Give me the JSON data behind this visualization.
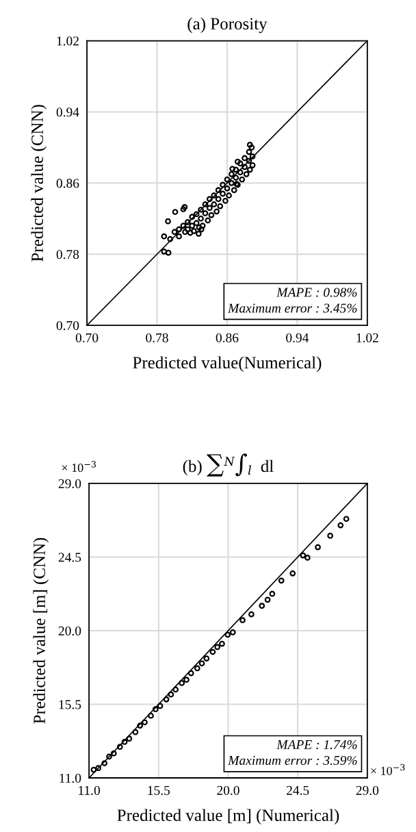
{
  "chart_data": [
    {
      "type": "scatter",
      "title": "(a) Porosity",
      "xlabel": "Predicted value(Numerical)",
      "ylabel": "Predicted value (CNN)",
      "xlim": [
        0.7,
        1.02
      ],
      "ylim": [
        0.7,
        1.02
      ],
      "xticks": [
        {
          "value": 0.7,
          "label": "0.70"
        },
        0.78,
        0.86,
        0.94,
        1.02
      ],
      "yticks": [
        {
          "value": 0.7,
          "label": "0.70"
        },
        0.78,
        0.86,
        0.94,
        1.02
      ],
      "grid": true,
      "legend": false,
      "annotations": [
        "MAPE : 0.98%",
        "Maximum error : 3.45%"
      ],
      "series": [
        {
          "type": "line",
          "color": "#000000",
          "x": [
            0.7,
            1.02
          ],
          "values": [
            0.7,
            1.02
          ]
        },
        {
          "color": "#000000",
          "marker": "circle",
          "x": [
            0.788,
            0.793,
            0.788,
            0.7925,
            0.8007,
            0.81,
            0.8115,
            0.8275,
            0.8306,
            0.8708,
            0.795,
            0.8,
            0.805,
            0.805,
            0.81,
            0.812,
            0.815,
            0.815,
            0.818,
            0.82,
            0.82,
            0.822,
            0.825,
            0.825,
            0.828,
            0.83,
            0.83,
            0.832,
            0.835,
            0.835,
            0.838,
            0.84,
            0.84,
            0.842,
            0.845,
            0.845,
            0.848,
            0.85,
            0.85,
            0.852,
            0.855,
            0.855,
            0.858,
            0.86,
            0.86,
            0.862,
            0.865,
            0.865,
            0.868,
            0.87,
            0.87,
            0.872,
            0.875,
            0.875,
            0.877,
            0.88,
            0.88,
            0.882,
            0.885,
            0.885,
            0.886,
            0.888,
            0.889,
            0.889,
            0.886,
            0.872,
            0.866
          ],
          "values": [
            0.783,
            0.7816,
            0.8,
            0.817,
            0.8275,
            0.8306,
            0.833,
            0.803,
            0.808,
            0.859,
            0.797,
            0.805,
            0.808,
            0.8,
            0.812,
            0.805,
            0.816,
            0.808,
            0.804,
            0.822,
            0.812,
            0.806,
            0.825,
            0.815,
            0.81,
            0.83,
            0.82,
            0.812,
            0.836,
            0.826,
            0.818,
            0.842,
            0.832,
            0.824,
            0.846,
            0.836,
            0.828,
            0.852,
            0.842,
            0.834,
            0.858,
            0.848,
            0.84,
            0.864,
            0.854,
            0.846,
            0.87,
            0.86,
            0.852,
            0.875,
            0.866,
            0.858,
            0.882,
            0.872,
            0.864,
            0.888,
            0.878,
            0.87,
            0.895,
            0.885,
            0.875,
            0.9,
            0.89,
            0.88,
            0.903,
            0.884,
            0.876
          ]
        }
      ]
    },
    {
      "type": "scatter",
      "title": "(b) ∑$^{N}$∫$_{l}$  dl",
      "xlabel": "Predicted value [m] (Numerical)",
      "ylabel": "Predicted value [m] (CNN)",
      "xlim": [
        11.0,
        29.0
      ],
      "ylim": [
        11.0,
        29.0
      ],
      "xticks": [
        {
          "value": 11.0,
          "label": "11.0"
        },
        15.5,
        {
          "value": 20.0,
          "label": "20.0"
        },
        24.5,
        {
          "value": 29.0,
          "label": "29.0"
        }
      ],
      "yticks": [
        {
          "value": 11.0,
          "label": "11.0"
        },
        15.5,
        {
          "value": 20.0,
          "label": "20.0"
        },
        24.5,
        {
          "value": 29.0,
          "label": "29.0"
        }
      ],
      "grid": true,
      "legend": false,
      "annotations": [
        "MAPE : 1.74%",
        "Maximum error : 3.59%",
        "× 10$^{−3}$",
        "× 10$^{−3}$"
      ],
      "series": [
        {
          "type": "line",
          "color": "#000000",
          "x": [
            11.0,
            29.0
          ],
          "values": [
            11.0,
            29.0
          ]
        },
        {
          "color": "#000000",
          "marker": "circle",
          "x": [
            11.3,
            11.6,
            12.0,
            12.3,
            12.6,
            13.0,
            13.3,
            13.6,
            14.0,
            14.3,
            14.6,
            15.0,
            15.3,
            15.6,
            16.0,
            16.3,
            16.6,
            17.0,
            17.3,
            17.6,
            18.0,
            18.3,
            18.6,
            19.0,
            19.3,
            19.6,
            19.97,
            20.3,
            20.93,
            21.5,
            22.18,
            22.55,
            22.85,
            23.44,
            24.17,
            24.84,
            25.13,
            25.8,
            26.6,
            27.27,
            27.64
          ],
          "values": [
            11.5,
            11.6,
            11.9,
            12.3,
            12.5,
            12.9,
            13.2,
            13.4,
            13.8,
            14.2,
            14.4,
            14.8,
            15.2,
            15.4,
            15.8,
            16.1,
            16.4,
            16.8,
            17.0,
            17.4,
            17.7,
            18.0,
            18.3,
            18.7,
            19.0,
            19.2,
            19.75,
            19.9,
            20.64,
            21.0,
            21.52,
            21.89,
            22.25,
            23.06,
            23.5,
            24.6,
            24.46,
            25.1,
            25.8,
            26.44,
            26.83
          ]
        }
      ]
    }
  ]
}
